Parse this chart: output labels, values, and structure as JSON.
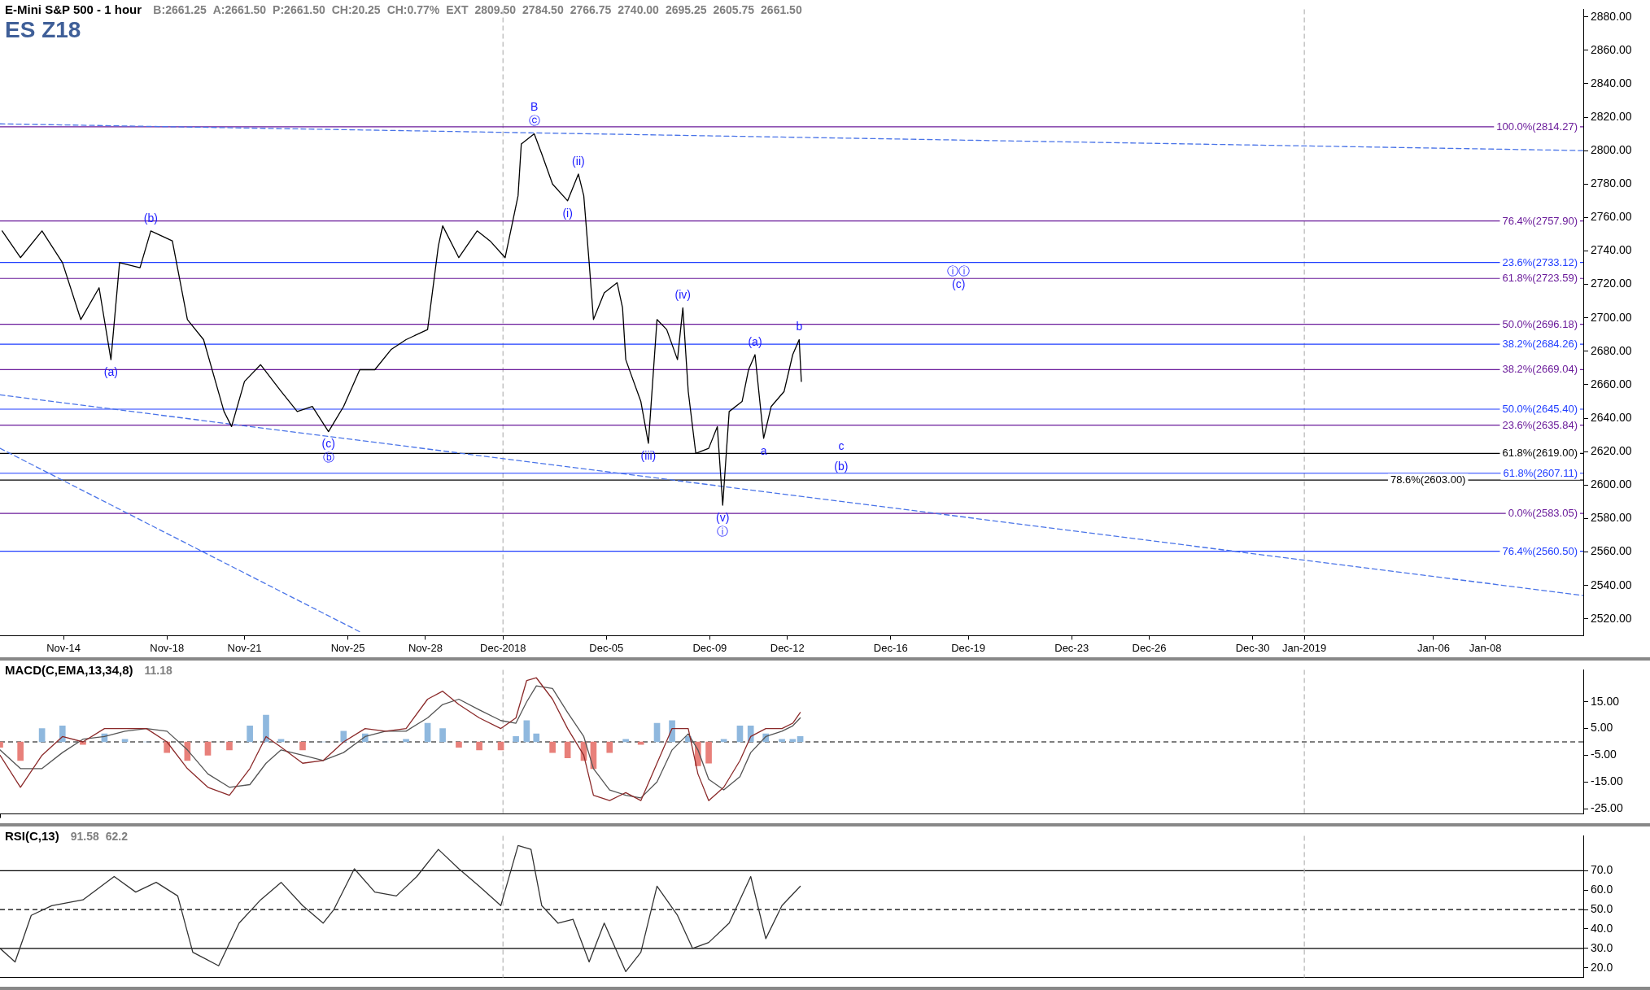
{
  "chart_data": [
    {
      "type": "line",
      "title": "E-Mini S&P 500 - 1 hour",
      "subtitle": "ES Z18",
      "marker": "none",
      "annotations": [
        "B:2661.25",
        "A:2661.50",
        "P:2661.50",
        "CH:20.25",
        "CH:0.77%",
        "EXT",
        "2809.50",
        "2784.50",
        "2766.75",
        "2740.00",
        "2695.25",
        "2605.75",
        {
          "text": "(a)",
          "x": "2018-11-15T20:00",
          "y": 2675
        },
        {
          "text": "(b)",
          "x": "2018-11-17T09:00",
          "y": 2752
        },
        {
          "text": "(c)",
          "x": "2018-11-24T06:00",
          "y": 2632
        },
        {
          "text": "ⓑ",
          "x": "2018-11-24T06:00",
          "y": 2632
        },
        {
          "text": "B",
          "x": "2018-12-02T05:00",
          "y": 2810
        },
        {
          "text": "ⓒ",
          "x": "2018-12-02T05:00",
          "y": 2810
        },
        {
          "text": "(i)",
          "x": "2018-12-03T12:00",
          "y": 2770
        },
        {
          "text": "(ii)",
          "x": "2018-12-03T22:00",
          "y": 2786
        },
        {
          "text": "(iii)",
          "x": "2018-12-06T15:00",
          "y": 2625
        },
        {
          "text": "(iv)",
          "x": "2018-12-07T23:00",
          "y": 2706
        },
        {
          "text": "(v)",
          "x": "2018-12-09T12:00",
          "y": 2588
        },
        {
          "text": "ⓘ",
          "x": "2018-12-09T12:00",
          "y": 2588
        },
        {
          "text": "(a)",
          "x": "2018-12-10T18:00",
          "y": 2678
        },
        {
          "text": "a",
          "x": "2018-12-11T02:00",
          "y": 2628
        },
        {
          "text": "b",
          "x": "2018-12-12T11:00",
          "y": 2687
        },
        {
          "text": "c",
          "x": "2018-12-14T02:00",
          "y": 2619
        },
        {
          "text": "(b)",
          "x": "2018-12-14T02:00",
          "y": 2607.11
        },
        {
          "text": "ⓘⓘ",
          "x": "2018-12-18T15:00",
          "y": 2723.59
        },
        {
          "text": "(c)",
          "x": "2018-12-18T15:00",
          "y": 2723.59
        },
        "2661.50"
      ],
      "xlim": [
        "2018-11-11T13:00",
        "2019-01-11T19:00"
      ],
      "xticks": [
        {
          "value": "2018-11-14",
          "label": "Nov-14"
        },
        {
          "value": "2018-11-18",
          "label": "Nov-18"
        },
        {
          "value": "2018-11-21",
          "label": "Nov-21"
        },
        {
          "value": "2018-11-25",
          "label": "Nov-25"
        },
        {
          "value": "2018-11-28",
          "label": "Nov-28"
        },
        {
          "value": "2018-12-01",
          "label": "Dec-2018"
        },
        {
          "value": "2018-12-05",
          "label": "Dec-05"
        },
        {
          "value": "2018-12-09",
          "label": "Dec-09"
        },
        {
          "value": "2018-12-12",
          "label": "Dec-12"
        },
        {
          "value": "2018-12-16",
          "label": "Dec-16"
        },
        {
          "value": "2018-12-19",
          "label": "Dec-19"
        },
        {
          "value": "2018-12-23",
          "label": "Dec-23"
        },
        {
          "value": "2018-12-26",
          "label": "Dec-26"
        },
        {
          "value": "2018-12-30",
          "label": "Dec-30"
        },
        {
          "value": "2019-01-01",
          "label": "Jan-2019"
        },
        {
          "value": "2019-01-06",
          "label": "Jan-06"
        },
        {
          "value": "2019-01-08",
          "label": "Jan-08"
        }
      ],
      "ylim": [
        2510,
        2884.5
      ],
      "yticks": [
        {
          "value": 2520,
          "label": "2520.00"
        },
        {
          "value": 2540,
          "label": "2540.00"
        },
        {
          "value": 2560,
          "label": "2560.00"
        },
        {
          "value": 2580,
          "label": "2580.00"
        },
        {
          "value": 2600,
          "label": "2600.00"
        },
        {
          "value": 2620,
          "label": "2620.00"
        },
        {
          "value": 2640,
          "label": "2640.00"
        },
        {
          "value": 2660,
          "label": "2660.00"
        },
        {
          "value": 2680,
          "label": "2680.00"
        },
        {
          "value": 2700,
          "label": "2700.00"
        },
        {
          "value": 2720,
          "label": "2720.00"
        },
        {
          "value": 2740,
          "label": "2740.00"
        },
        {
          "value": 2760,
          "label": "2760.00"
        },
        {
          "value": 2780,
          "label": "2780.00"
        },
        {
          "value": 2800,
          "label": "2800.00"
        },
        {
          "value": 2820,
          "label": "2820.00"
        },
        {
          "value": 2840,
          "label": "2840.00"
        },
        {
          "value": 2860,
          "label": "2860.00"
        },
        {
          "value": 2880,
          "label": "2880.00"
        }
      ],
      "ref_lines": [
        {
          "axis": "x",
          "value": "2018-12-01",
          "color": "#b4b4b4",
          "line_style": "dashed"
        },
        {
          "axis": "x",
          "value": "2019-01-01",
          "color": "#b4b4b4",
          "line_style": "dashed"
        },
        {
          "axis": "y",
          "value": 2814.27,
          "label": "100.0%(2814.27)",
          "color": "#6a1b9a"
        },
        {
          "axis": "y",
          "value": 2757.9,
          "label": "76.4%(2757.90)",
          "color": "#6a1b9a"
        },
        {
          "axis": "y",
          "value": 2733.12,
          "label": "23.6%(2733.12)",
          "color": "#1f3dff"
        },
        {
          "axis": "y",
          "value": 2723.59,
          "label": "61.8%(2723.59)",
          "color": "#6a1b9a"
        },
        {
          "axis": "y",
          "value": 2696.18,
          "label": "50.0%(2696.18)",
          "color": "#6a1b9a"
        },
        {
          "axis": "y",
          "value": 2684.26,
          "label": "38.2%(2684.26)",
          "color": "#1f3dff"
        },
        {
          "axis": "y",
          "value": 2669.04,
          "label": "38.2%(2669.04)",
          "color": "#6a1b9a"
        },
        {
          "axis": "y",
          "value": 2645.4,
          "label": "50.0%(2645.40)",
          "color": "#1f3dff"
        },
        {
          "axis": "y",
          "value": 2635.84,
          "label": "23.6%(2635.84)",
          "color": "#6a1b9a"
        },
        {
          "axis": "y",
          "value": 2619,
          "label": "61.8%(2619.00)",
          "color": "#000000"
        },
        {
          "axis": "y",
          "value": 2607.11,
          "label": "61.8%(2607.11)",
          "color": "#1f3dff"
        },
        {
          "axis": "y",
          "value": 2603,
          "label": "78.6%(2603.00)",
          "color": "#000000"
        },
        {
          "axis": "y",
          "value": 2583.05,
          "label": "0.0%(2583.05)",
          "color": "#6a1b9a"
        },
        {
          "axis": "y",
          "value": 2560.5,
          "label": "76.4%(2560.50)",
          "color": "#1f3dff"
        }
      ],
      "series": [
        {
          "color": "#000000",
          "x": [
            "2018-11-11T15:00",
            "2018-11-12T08:00",
            "2018-11-13T04:00",
            "2018-11-13T23:00",
            "2018-11-14T16:00",
            "2018-11-15T09:00",
            "2018-11-15T20:00",
            "2018-11-16T04:00",
            "2018-11-16T23:00",
            "2018-11-17T09:00",
            "2018-11-18T05:00",
            "2018-11-18T19:00",
            "2018-11-19T10:00",
            "2018-11-20T05:00",
            "2018-11-20T12:00",
            "2018-11-21T00:00",
            "2018-11-21T15:00",
            "2018-11-22T10:00",
            "2018-11-23T01:00",
            "2018-11-23T15:00",
            "2018-11-24T06:00",
            "2018-11-24T20:00",
            "2018-11-25T11:00",
            "2018-11-26T01:00",
            "2018-11-26T16:00",
            "2018-11-27T06:00",
            "2018-11-28T02:00",
            "2018-11-28T12:00",
            "2018-11-28T16:00",
            "2018-11-29T07:00",
            "2018-11-30T00:00",
            "2018-11-30T12:00",
            "2018-12-01T02:00",
            "2018-12-01T14:00",
            "2018-12-01T17:00",
            "2018-12-02T05:00",
            "2018-12-02T12:00",
            "2018-12-02T22:00",
            "2018-12-03T12:00",
            "2018-12-03T22:00",
            "2018-12-04T03:00",
            "2018-12-04T08:00",
            "2018-12-04T12:00",
            "2018-12-04T22:00",
            "2018-12-05T10:00",
            "2018-12-05T15:00",
            "2018-12-05T18:00",
            "2018-12-05T23:00",
            "2018-12-06T08:00",
            "2018-12-06T15:00",
            "2018-12-06T23:00",
            "2018-12-07T08:00",
            "2018-12-07T18:00",
            "2018-12-07T23:00",
            "2018-12-08T04:00",
            "2018-12-08T11:00",
            "2018-12-08T23:00",
            "2018-12-09T07:00",
            "2018-12-09T12:00",
            "2018-12-09T18:00",
            "2018-12-10T06:00",
            "2018-12-10T12:00",
            "2018-12-10T18:00",
            "2018-12-11T02:00",
            "2018-12-11T09:00",
            "2018-12-11T21:00",
            "2018-12-12T05:00",
            "2018-12-12T11:00",
            "2018-12-12T13:00"
          ],
          "values": [
            2752,
            2736,
            2752,
            2733,
            2699,
            2718,
            2675,
            2733,
            2730,
            2752,
            2746,
            2699,
            2687,
            2644,
            2635,
            2662,
            2672,
            2656,
            2644,
            2647,
            2632,
            2647,
            2669,
            2669,
            2681,
            2687,
            2693,
            2743,
            2755,
            2736,
            2752,
            2746,
            2736,
            2773,
            2804,
            2810,
            2798,
            2780,
            2770,
            2786,
            2773,
            2733,
            2699,
            2715,
            2721,
            2706,
            2675,
            2666,
            2650,
            2625,
            2699,
            2693,
            2675,
            2706,
            2656,
            2619,
            2622,
            2635,
            2588,
            2644,
            2650,
            2669,
            2678,
            2628,
            2647,
            2656,
            2678,
            2687,
            2662
          ]
        },
        {
          "color": "#4a74e8",
          "line_style": "dashed",
          "x": [
            "2018-11-11T13:00",
            "2019-01-11T19:00"
          ],
          "values": [
            2816,
            2800
          ]
        },
        {
          "color": "#4a74e8",
          "line_style": "dashed",
          "x": [
            "2018-11-11T13:00",
            "2019-01-11T19:00"
          ],
          "values": [
            2654,
            2534
          ]
        },
        {
          "color": "#4a74e8",
          "line_style": "dashed",
          "x": [
            "2018-11-11T13:00",
            "2018-11-25T12:00"
          ],
          "values": [
            2622,
            2512
          ]
        }
      ]
    },
    {
      "type": "line",
      "title": "MACD(C,EMA,13,34,8)",
      "marker": "none",
      "tick_labels": "y",
      "annotations": [
        "11.18"
      ],
      "xlim": [
        "2018-11-11T13:00",
        "2019-01-11T19:00"
      ],
      "ylim": [
        -27,
        27
      ],
      "yticks": [
        {
          "value": 15,
          "label": "15.00"
        },
        {
          "value": 5,
          "label": "5.00"
        },
        {
          "value": -5,
          "label": "-5.00"
        },
        {
          "value": -15,
          "label": "-15.00"
        },
        {
          "value": -25,
          "label": "-25.00"
        }
      ],
      "ref_lines": [
        {
          "axis": "y",
          "value": 0,
          "color": "#000000",
          "line_style": "dashed"
        },
        {
          "axis": "x",
          "value": "2018-12-01",
          "color": "#b4b4b4",
          "line_style": "dashed"
        },
        {
          "axis": "x",
          "value": "2019-01-01",
          "color": "#b4b4b4",
          "line_style": "dashed"
        }
      ],
      "series": [
        {
          "type": "bar",
          "x": [
            "2018-11-11T13:00",
            "2018-11-12T08:00",
            "2018-11-13T04:00",
            "2018-11-13T23:00",
            "2018-11-14T18:00",
            "2018-11-15T14:00",
            "2018-11-16T09:00",
            "2018-11-17T05:00",
            "2018-11-18T00:00",
            "2018-11-18T19:00",
            "2018-11-19T14:00",
            "2018-11-20T10:00",
            "2018-11-21T05:00",
            "2018-11-21T20:00",
            "2018-11-22T10:00",
            "2018-11-23T06:00",
            "2018-11-24T01:00",
            "2018-11-24T20:00",
            "2018-11-25T16:00",
            "2018-11-26T11:00",
            "2018-11-27T06:00",
            "2018-11-28T02:00",
            "2018-11-28T16:00",
            "2018-11-29T07:00",
            "2018-11-30T02:00",
            "2018-11-30T22:00",
            "2018-12-01T12:00",
            "2018-12-01T22:00",
            "2018-12-02T07:00",
            "2018-12-02T22:00",
            "2018-12-03T12:00",
            "2018-12-04T03:00",
            "2018-12-04T12:00",
            "2018-12-05T03:00",
            "2018-12-05T18:00",
            "2018-12-06T08:00",
            "2018-12-06T23:00",
            "2018-12-07T13:00",
            "2018-12-08T04:00",
            "2018-12-08T13:00",
            "2018-12-08T23:00",
            "2018-12-09T13:00",
            "2018-12-10T04:00",
            "2018-12-10T14:00",
            "2018-12-11T04:00",
            "2018-12-11T19:00",
            "2018-12-12T05:00",
            "2018-12-12T12:00"
          ],
          "values": [
            -2,
            -7,
            5,
            6,
            -1,
            3,
            1,
            0,
            -4,
            -7,
            -5,
            -3,
            6,
            10,
            1,
            -3,
            0,
            4,
            3,
            0,
            1,
            7,
            5,
            -2,
            -3,
            -3,
            2,
            8,
            3,
            -4,
            -6,
            -7,
            -10,
            -4,
            1,
            -1,
            7,
            8,
            2,
            -9,
            -8,
            1,
            6,
            6,
            3,
            1,
            1,
            2
          ],
          "colors": [
            "#e8807a",
            "#e8807a",
            "#8fb8de",
            "#8fb8de",
            "#e8807a",
            "#8fb8de",
            "#8fb8de",
            "#8fb8de",
            "#e8807a",
            "#e8807a",
            "#e8807a",
            "#e8807a",
            "#8fb8de",
            "#8fb8de",
            "#8fb8de",
            "#e8807a",
            "#8fb8de",
            "#8fb8de",
            "#8fb8de",
            "#8fb8de",
            "#8fb8de",
            "#8fb8de",
            "#8fb8de",
            "#e8807a",
            "#e8807a",
            "#e8807a",
            "#8fb8de",
            "#8fb8de",
            "#8fb8de",
            "#e8807a",
            "#e8807a",
            "#e8807a",
            "#e8807a",
            "#e8807a",
            "#8fb8de",
            "#e8807a",
            "#8fb8de",
            "#8fb8de",
            "#8fb8de",
            "#e8807a",
            "#e8807a",
            "#8fb8de",
            "#8fb8de",
            "#8fb8de",
            "#8fb8de",
            "#8fb8de",
            "#8fb8de",
            "#8fb8de"
          ]
        },
        {
          "color": "#8b2a2a",
          "x": [
            "2018-11-11T13:00",
            "2018-11-12T08:00",
            "2018-11-13T04:00",
            "2018-11-13T23:00",
            "2018-11-14T18:00",
            "2018-11-15T14:00",
            "2018-11-16T09:00",
            "2018-11-17T05:00",
            "2018-11-18T00:00",
            "2018-11-18T19:00",
            "2018-11-19T14:00",
            "2018-11-20T10:00",
            "2018-11-21T05:00",
            "2018-11-21T20:00",
            "2018-11-22T10:00",
            "2018-11-23T06:00",
            "2018-11-24T01:00",
            "2018-11-24T20:00",
            "2018-11-25T16:00",
            "2018-11-26T11:00",
            "2018-11-27T06:00",
            "2018-11-28T02:00",
            "2018-11-28T16:00",
            "2018-11-29T07:00",
            "2018-11-30T02:00",
            "2018-11-30T22:00",
            "2018-12-01T12:00",
            "2018-12-01T22:00",
            "2018-12-02T07:00",
            "2018-12-02T22:00",
            "2018-12-03T12:00",
            "2018-12-04T03:00",
            "2018-12-04T12:00",
            "2018-12-05T03:00",
            "2018-12-05T18:00",
            "2018-12-06T08:00",
            "2018-12-06T23:00",
            "2018-12-07T13:00",
            "2018-12-08T04:00",
            "2018-12-08T13:00",
            "2018-12-08T23:00",
            "2018-12-09T13:00",
            "2018-12-10T04:00",
            "2018-12-10T14:00",
            "2018-12-11T04:00",
            "2018-12-11T19:00",
            "2018-12-12T05:00",
            "2018-12-12T12:00"
          ],
          "values": [
            -5,
            -17,
            -5,
            2,
            0,
            5,
            5,
            5,
            0,
            -10,
            -17,
            -20,
            -10,
            2,
            -2,
            -8,
            -7,
            0,
            5,
            4,
            5,
            16,
            19,
            14,
            9,
            5,
            9,
            23,
            24,
            16,
            5,
            -5,
            -20,
            -22,
            -19,
            -22,
            -8,
            5,
            5,
            -12,
            -22,
            -17,
            -7,
            2,
            5,
            5,
            7,
            11
          ]
        },
        {
          "color": "#555555",
          "x": [
            "2018-11-11T13:00",
            "2018-11-12T08:00",
            "2018-11-13T04:00",
            "2018-11-13T23:00",
            "2018-11-14T18:00",
            "2018-11-15T14:00",
            "2018-11-16T09:00",
            "2018-11-17T05:00",
            "2018-11-18T00:00",
            "2018-11-18T19:00",
            "2018-11-19T14:00",
            "2018-11-20T10:00",
            "2018-11-21T05:00",
            "2018-11-21T20:00",
            "2018-11-22T10:00",
            "2018-11-23T06:00",
            "2018-11-24T01:00",
            "2018-11-24T20:00",
            "2018-11-25T16:00",
            "2018-11-26T11:00",
            "2018-11-27T06:00",
            "2018-11-28T02:00",
            "2018-11-28T16:00",
            "2018-11-29T07:00",
            "2018-11-30T02:00",
            "2018-11-30T22:00",
            "2018-12-01T12:00",
            "2018-12-01T22:00",
            "2018-12-02T07:00",
            "2018-12-02T22:00",
            "2018-12-03T12:00",
            "2018-12-04T03:00",
            "2018-12-04T12:00",
            "2018-12-05T03:00",
            "2018-12-05T18:00",
            "2018-12-06T08:00",
            "2018-12-06T23:00",
            "2018-12-07T13:00",
            "2018-12-08T04:00",
            "2018-12-08T13:00",
            "2018-12-08T23:00",
            "2018-12-09T13:00",
            "2018-12-10T04:00",
            "2018-12-10T14:00",
            "2018-12-11T04:00",
            "2018-12-11T19:00",
            "2018-12-12T05:00",
            "2018-12-12T12:00"
          ],
          "values": [
            -3,
            -10,
            -10,
            -4,
            1,
            2,
            4,
            5,
            4,
            -3,
            -12,
            -17,
            -16,
            -8,
            -3,
            -5,
            -7,
            -4,
            2,
            4,
            4,
            9,
            14,
            16,
            12,
            8,
            7,
            15,
            21,
            20,
            11,
            2,
            -10,
            -18,
            -20,
            -21,
            -15,
            -3,
            3,
            -3,
            -14,
            -18,
            -13,
            -4,
            2,
            4,
            6,
            9
          ]
        }
      ]
    },
    {
      "type": "line",
      "title": "RSI(C,13)",
      "marker": "none",
      "tick_labels": "y",
      "annotations": [
        "91.58",
        "62.2"
      ],
      "xlim": [
        "2018-11-11T13:00",
        "2019-01-11T19:00"
      ],
      "ylim": [
        15,
        88
      ],
      "yticks": [
        {
          "value": 20,
          "label": "20.0"
        },
        {
          "value": 30,
          "label": "30.0"
        },
        {
          "value": 40,
          "label": "40.0"
        },
        {
          "value": 50,
          "label": "50.0"
        },
        {
          "value": 60,
          "label": "60.0"
        },
        {
          "value": 70,
          "label": "70.0"
        }
      ],
      "ref_lines": [
        {
          "axis": "y",
          "value": 70,
          "color": "#000000"
        },
        {
          "axis": "y",
          "value": 50,
          "color": "#000000",
          "line_style": "dashed"
        },
        {
          "axis": "y",
          "value": 30,
          "color": "#000000"
        },
        {
          "axis": "x",
          "value": "2018-12-01",
          "color": "#b4b4b4",
          "line_style": "dashed"
        },
        {
          "axis": "x",
          "value": "2019-01-01",
          "color": "#b4b4b4",
          "line_style": "dashed"
        }
      ],
      "series": [
        {
          "color": "#333333",
          "x": [
            "2018-11-11T13:00",
            "2018-11-12T03:00",
            "2018-11-12T18:00",
            "2018-11-13T13:00",
            "2018-11-14T18:00",
            "2018-11-15T23:00",
            "2018-11-16T19:00",
            "2018-11-17T14:00",
            "2018-11-18T10:00",
            "2018-11-19T00:00",
            "2018-11-20T00:00",
            "2018-11-20T19:00",
            "2018-11-21T15:00",
            "2018-11-22T10:00",
            "2018-11-23T06:00",
            "2018-11-24T01:00",
            "2018-11-24T11:00",
            "2018-11-25T06:00",
            "2018-11-26T01:00",
            "2018-11-26T21:00",
            "2018-11-27T16:00",
            "2018-11-28T12:00",
            "2018-11-29T07:00",
            "2018-11-30T02:00",
            "2018-11-30T22:00",
            "2018-12-01T14:00",
            "2018-12-02T02:00",
            "2018-12-02T12:00",
            "2018-12-03T03:00",
            "2018-12-03T17:00",
            "2018-12-04T08:00",
            "2018-12-04T22:00",
            "2018-12-05T18:00",
            "2018-12-06T08:00",
            "2018-12-06T23:00",
            "2018-12-07T18:00",
            "2018-12-08T08:00",
            "2018-12-08T23:00",
            "2018-12-09T18:00",
            "2018-12-10T14:00",
            "2018-12-11T04:00",
            "2018-12-11T19:00",
            "2018-12-12T12:00"
          ],
          "values": [
            30,
            23,
            47,
            52,
            55,
            67,
            59,
            64,
            57,
            28,
            21,
            43,
            55,
            64,
            52,
            43,
            50,
            71,
            59,
            57,
            67,
            81,
            71,
            62,
            52,
            83,
            81,
            52,
            43,
            45,
            23,
            43,
            18,
            28,
            62,
            47,
            30,
            33,
            43,
            67,
            35,
            52,
            62
          ]
        }
      ]
    }
  ]
}
